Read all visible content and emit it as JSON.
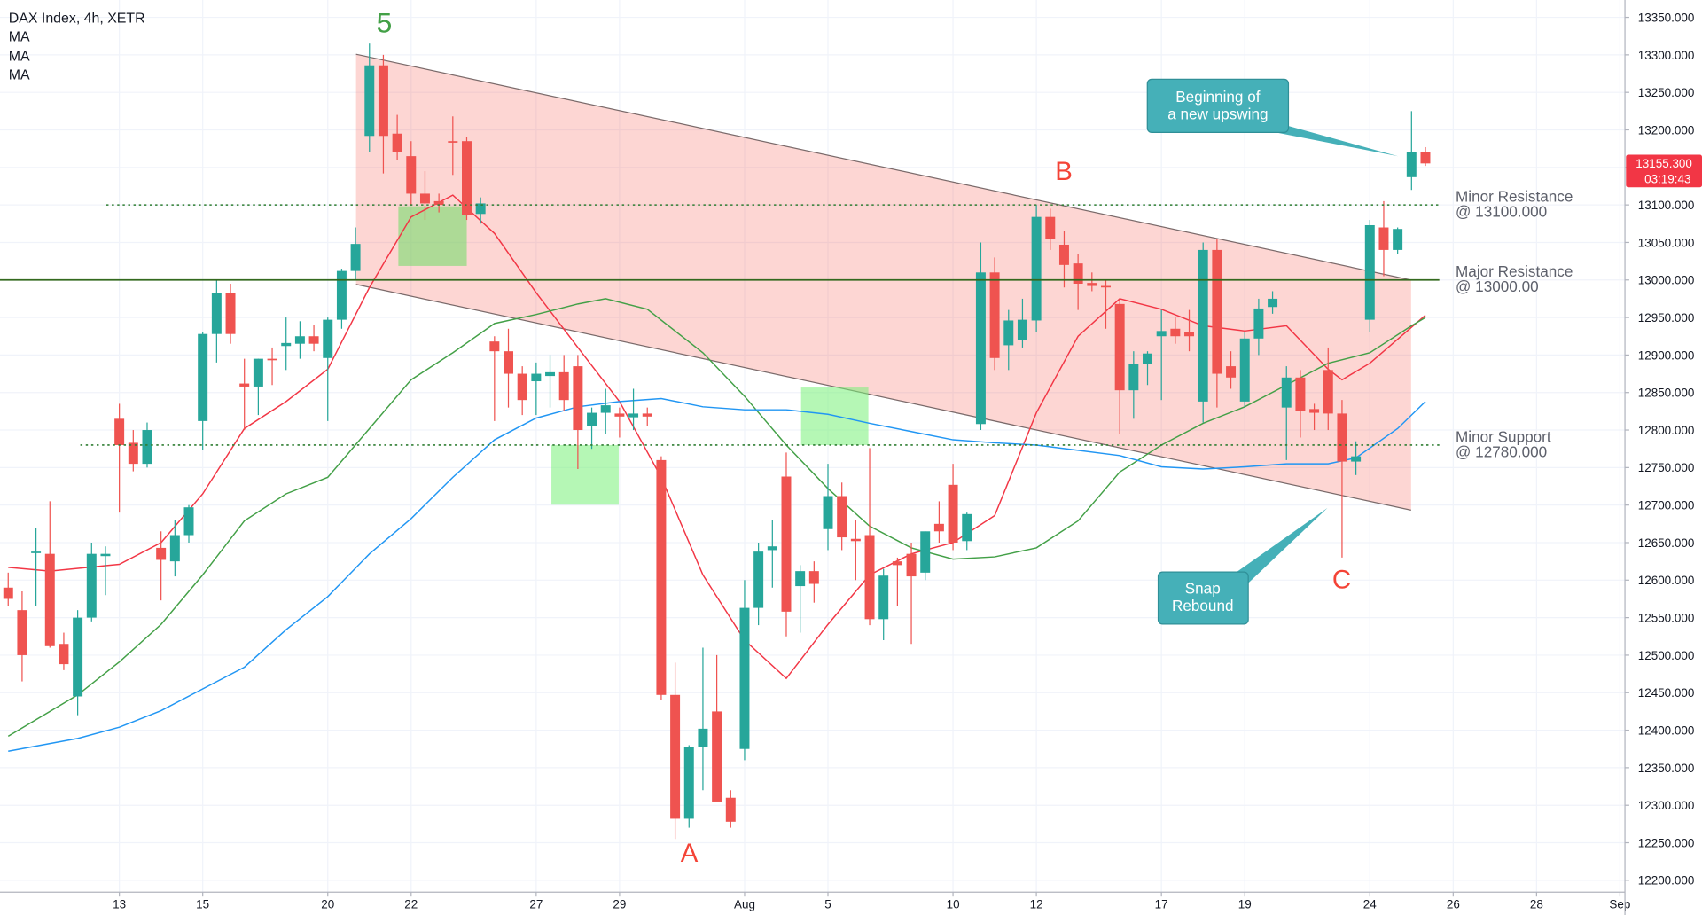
{
  "chart_data": {
    "type": "candlestick",
    "title": "DAX Index, 4h, XETR",
    "up_color": "#26a69a",
    "down_color": "#ef5350",
    "x": [
      -8,
      -7,
      -6,
      -5,
      -4,
      -3,
      -2,
      -1,
      0,
      1,
      2,
      3,
      4,
      5,
      6,
      7,
      8,
      9,
      10,
      11,
      12,
      13,
      14,
      15,
      16,
      17,
      18,
      19,
      20,
      21,
      22,
      23,
      24,
      25,
      26,
      27,
      28,
      29,
      30,
      31,
      32,
      33,
      34,
      35,
      36,
      37,
      38,
      39,
      40,
      41,
      42,
      43,
      44,
      45,
      46,
      47,
      48,
      49,
      50,
      51,
      52,
      53,
      54,
      55,
      56,
      57,
      58,
      59,
      60,
      61,
      62,
      63,
      64,
      65,
      66,
      67,
      68,
      69,
      70,
      71,
      72,
      73,
      74,
      75,
      76,
      77,
      78,
      79,
      80,
      81,
      82,
      83,
      84,
      85,
      86,
      87,
      88,
      89,
      90,
      91,
      92,
      93,
      94
    ],
    "open": [
      12590,
      12560,
      12636,
      12635,
      12515,
      12445,
      12550,
      12632,
      12815,
      12783,
      12755,
      12643,
      12625,
      12660,
      12812,
      12928,
      12982,
      12862,
      12858,
      12895,
      12912,
      12915,
      12925,
      12896,
      12947,
      13012,
      13192,
      13286,
      13195,
      13165,
      13115,
      13105,
      13185,
      13185,
      13088,
      12918,
      12905,
      12875,
      12865,
      12872,
      12877,
      12885,
      12805,
      12823,
      12822,
      12817,
      12822,
      12760,
      12447,
      12282,
      12378,
      12425,
      12310,
      12375,
      12563,
      12640,
      12738,
      12592,
      12612,
      12668,
      12712,
      12655,
      12660,
      12548,
      12625,
      12635,
      12610,
      12675,
      12727,
      12652,
      12808,
      13010,
      12913,
      12920,
      12946,
      13084,
      13047,
      13022,
      12996,
      12992,
      12968,
      12853,
      12888,
      12925,
      12935,
      12930,
      12838,
      13040,
      12885,
      12838,
      12922,
      12964,
      12830,
      12870,
      12828,
      12880,
      12822,
      12758,
      12947,
      13070,
      13040,
      13137,
      13170
    ],
    "high": [
      12610,
      12585,
      12670,
      12705,
      12530,
      12560,
      12650,
      12645,
      12835,
      12800,
      12810,
      12665,
      12680,
      12700,
      12930,
      13000,
      12995,
      12895,
      12895,
      12910,
      12950,
      12945,
      12940,
      12950,
      13015,
      13070,
      13315,
      13300,
      13220,
      13185,
      13145,
      13115,
      13218,
      13190,
      13110,
      12925,
      12935,
      12885,
      12890,
      12900,
      12900,
      12900,
      12830,
      12855,
      12830,
      12855,
      12830,
      12765,
      12490,
      12380,
      12510,
      12500,
      12320,
      12600,
      12650,
      12680,
      12770,
      12620,
      12625,
      12755,
      12730,
      12680,
      12776,
      12615,
      12630,
      12650,
      12665,
      12705,
      12755,
      12690,
      13050,
      13030,
      12960,
      12975,
      13100,
      13095,
      13065,
      13035,
      13010,
      13000,
      12975,
      12905,
      12905,
      12960,
      12950,
      12960,
      13050,
      13055,
      12905,
      12930,
      12975,
      12985,
      12885,
      12880,
      12835,
      12910,
      12840,
      12785,
      13080,
      13105,
      13070,
      13225,
      13177
    ],
    "low": [
      12565,
      12465,
      12565,
      12510,
      12480,
      12420,
      12545,
      12580,
      12690,
      12745,
      12750,
      12573,
      12605,
      12650,
      12773,
      12890,
      12915,
      12800,
      12820,
      12860,
      12880,
      12895,
      12905,
      12812,
      12935,
      13000,
      13170,
      13142,
      13160,
      13100,
      13080,
      13090,
      13140,
      13080,
      13075,
      12812,
      12830,
      12820,
      12820,
      12830,
      12825,
      12748,
      12775,
      12795,
      12790,
      12800,
      12805,
      12440,
      12255,
      12270,
      12320,
      12310,
      12270,
      12360,
      12540,
      12590,
      12525,
      12530,
      12570,
      12640,
      12640,
      12600,
      12540,
      12520,
      12565,
      12515,
      12600,
      12650,
      12640,
      12640,
      12800,
      12880,
      12880,
      12910,
      12930,
      13040,
      12990,
      12960,
      12985,
      12935,
      12795,
      12815,
      12860,
      12840,
      12915,
      12905,
      12810,
      12830,
      12855,
      12830,
      12900,
      12955,
      12760,
      12790,
      12800,
      12800,
      12630,
      12740,
      12930,
      13005,
      13035,
      13120,
      13152
    ],
    "close": [
      12575,
      12500,
      12638,
      12512,
      12488,
      12550,
      12635,
      12635,
      12780,
      12755,
      12800,
      12627,
      12660,
      12697,
      12928,
      12982,
      12928,
      12858,
      12895,
      12893,
      12916,
      12925,
      12915,
      12947,
      13012,
      13048,
      13286,
      13192,
      13170,
      13115,
      13102,
      13100,
      13183,
      13086,
      13102,
      12905,
      12875,
      12840,
      12875,
      12877,
      12840,
      12800,
      12823,
      12833,
      12818,
      12822,
      12818,
      12447,
      12282,
      12378,
      12402,
      12305,
      12278,
      12563,
      12638,
      12645,
      12558,
      12612,
      12595,
      12712,
      12657,
      12652,
      12548,
      12606,
      12620,
      12605,
      12665,
      12665,
      12650,
      12688,
      13010,
      12896,
      12946,
      12947,
      13084,
      13055,
      13020,
      12995,
      12992,
      12990,
      12853,
      12888,
      12902,
      12932,
      12925,
      12925,
      13040,
      12875,
      12870,
      12922,
      12962,
      12975,
      12870,
      12825,
      12823,
      12822,
      12758,
      12765,
      13073,
      13040,
      13068,
      13170,
      13155.3
    ],
    "series": [
      {
        "name": "MA",
        "color": "#f23645",
        "x": [
          -8,
          -5,
          0,
          3,
          6,
          9,
          12,
          15,
          18,
          21,
          24,
          27,
          30,
          33,
          36,
          39,
          42,
          45,
          48,
          51,
          54,
          57,
          60,
          63,
          66,
          69,
          72,
          75,
          78,
          81,
          84,
          87,
          88,
          90,
          94
        ],
        "values": [
          12617,
          12612,
          12621,
          12650,
          12715,
          12802,
          12838,
          12881,
          12990,
          13084,
          13113,
          13062,
          12983,
          12910,
          12838,
          12737,
          12607,
          12520,
          12469,
          12541,
          12607,
          12635,
          12650,
          12686,
          12823,
          12925,
          12975,
          12961,
          12939,
          12932,
          12939,
          12881,
          12867,
          12889,
          12953
        ]
      },
      {
        "name": "MA",
        "color": "#43a047",
        "x": [
          -8,
          -3,
          0,
          3,
          6,
          9,
          12,
          15,
          18,
          21,
          24,
          27,
          30,
          33,
          35,
          38,
          42,
          45,
          48,
          51,
          54,
          57,
          60,
          63,
          66,
          69,
          72,
          75,
          78,
          81,
          84,
          87,
          90,
          93,
          94
        ],
        "values": [
          12392,
          12447,
          12491,
          12541,
          12607,
          12679,
          12715,
          12737,
          12802,
          12867,
          12903,
          12942,
          12954,
          12968,
          12975,
          12961,
          12903,
          12845,
          12780,
          12722,
          12672,
          12643,
          12628,
          12631,
          12643,
          12679,
          12744,
          12780,
          12809,
          12831,
          12860,
          12889,
          12903,
          12939,
          12950
        ]
      },
      {
        "name": "MA",
        "color": "#2196f3",
        "x": [
          -8,
          -3,
          0,
          3,
          6,
          9,
          12,
          15,
          18,
          21,
          24,
          27,
          30,
          33,
          36,
          39,
          42,
          45,
          48,
          51,
          54,
          57,
          60,
          63,
          66,
          69,
          72,
          75,
          78,
          81,
          84,
          87,
          89,
          92,
          94
        ],
        "values": [
          12372,
          12389,
          12404,
          12426,
          12455,
          12484,
          12534,
          12578,
          12635,
          12682,
          12737,
          12787,
          12816,
          12831,
          12838,
          12842,
          12831,
          12827,
          12827,
          12821,
          12809,
          12798,
          12787,
          12783,
          12780,
          12773,
          12766,
          12751,
          12748,
          12751,
          12755,
          12755,
          12763,
          12802,
          12838
        ]
      }
    ],
    "xlim": [
      -8.59,
      108.36
    ],
    "ylim": [
      12184.1,
      13373.1
    ],
    "xticks": [
      {
        "value": 0,
        "label": "13"
      },
      {
        "value": 6,
        "label": "15"
      },
      {
        "value": 15,
        "label": "20"
      },
      {
        "value": 21,
        "label": "22"
      },
      {
        "value": 30,
        "label": "27"
      },
      {
        "value": 36,
        "label": "29"
      },
      {
        "value": 45,
        "label": "Aug"
      },
      {
        "value": 51,
        "label": "5"
      },
      {
        "value": 60,
        "label": "10"
      },
      {
        "value": 66,
        "label": "12"
      },
      {
        "value": 75,
        "label": "17"
      },
      {
        "value": 81,
        "label": "19"
      },
      {
        "value": 90,
        "label": "24"
      },
      {
        "value": 96,
        "label": "26"
      },
      {
        "value": 102,
        "label": "28"
      },
      {
        "value": 108,
        "label": "Sep"
      }
    ],
    "yticks": [
      {
        "value": 12200,
        "label": "12200.000"
      },
      {
        "value": 12250,
        "label": "12250.000"
      },
      {
        "value": 12300,
        "label": "12300.000"
      },
      {
        "value": 12350,
        "label": "12350.000"
      },
      {
        "value": 12400,
        "label": "12400.000"
      },
      {
        "value": 12450,
        "label": "12450.000"
      },
      {
        "value": 12500,
        "label": "12500.000"
      },
      {
        "value": 12550,
        "label": "12550.000"
      },
      {
        "value": 12600,
        "label": "12600.000"
      },
      {
        "value": 12650,
        "label": "12650.000"
      },
      {
        "value": 12700,
        "label": "12700.000"
      },
      {
        "value": 12750,
        "label": "12750.000"
      },
      {
        "value": 12800,
        "label": "12800.000"
      },
      {
        "value": 12850,
        "label": "12850.000"
      },
      {
        "value": 12900,
        "label": "12900.000"
      },
      {
        "value": 12950,
        "label": "12950.000"
      },
      {
        "value": 13000,
        "label": "13000.000"
      },
      {
        "value": 13050,
        "label": "13050.000"
      },
      {
        "value": 13100,
        "label": "13100.000"
      },
      {
        "value": 13150,
        "label": "13150.000"
      },
      {
        "value": 13200,
        "label": "13200.000"
      },
      {
        "value": 13250,
        "label": "13250.000"
      },
      {
        "value": 13300,
        "label": "13300.000"
      },
      {
        "value": 13350,
        "label": "13350.000"
      }
    ],
    "grid": true,
    "last_price": {
      "value": 13155.3,
      "label": "13155.300",
      "color": "#f23645"
    },
    "countdown": "03:19:43",
    "levels": [
      {
        "value": 13100,
        "label": [
          "Minor Resistance",
          "@ 13100.000"
        ],
        "style": "dotted",
        "color": "#2e7d32"
      },
      {
        "value": 13000,
        "label": [
          "Major Resistance",
          "@ 13000.00"
        ],
        "style": "solid",
        "color": "#33691e"
      },
      {
        "value": 12780,
        "label": [
          "Minor Support",
          "@ 12780.000"
        ],
        "style": "dotted",
        "color": "#2e7d32"
      }
    ],
    "wave_labels": [
      "5",
      "A",
      "B",
      "C"
    ],
    "callouts": [
      [
        "Beginning of",
        "a new upswing"
      ],
      [
        "Snap",
        "Rebound"
      ]
    ]
  }
}
